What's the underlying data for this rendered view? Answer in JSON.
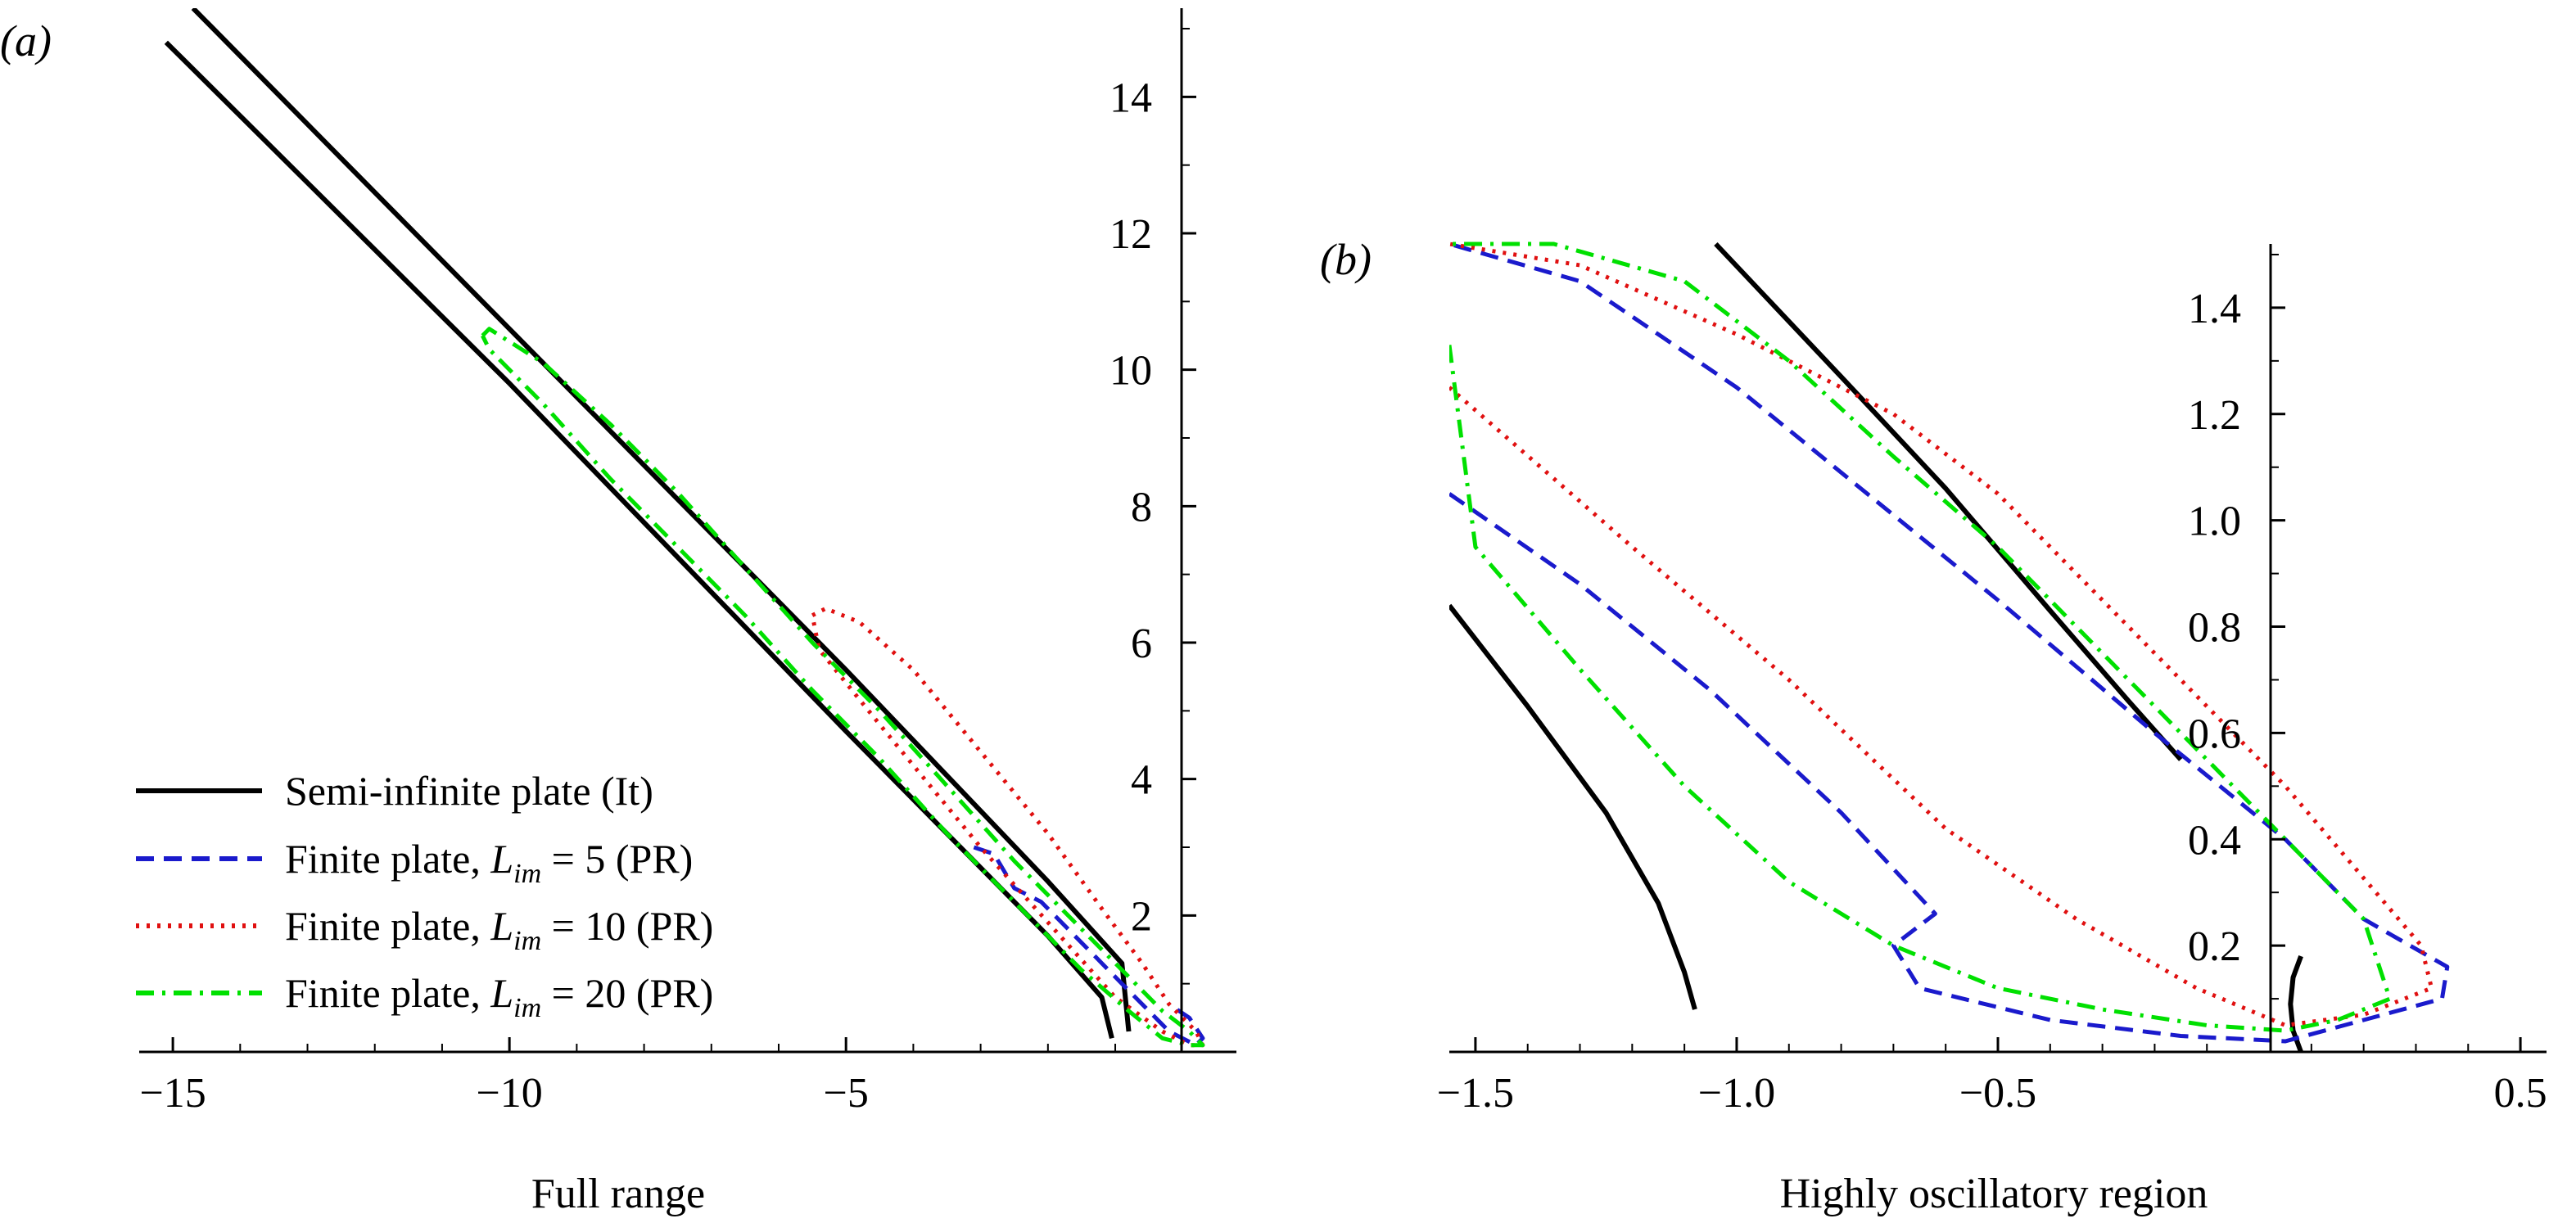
{
  "figure": {
    "panel_a_label": "(a)",
    "panel_b_label": "(b)"
  },
  "chart_data": [
    {
      "type": "line",
      "panel": "(a)",
      "xlabel": "Full range",
      "ylabel": "",
      "xlim": [
        -15.5,
        0.8
      ],
      "ylim": [
        0,
        15.3
      ],
      "xticks": [
        "−15",
        "−10",
        "−5"
      ],
      "yticks": [
        "2",
        "4",
        "6",
        "8",
        "10",
        "12",
        "14"
      ],
      "grid": false,
      "legend_position": "bottom-left",
      "legend": [
        {
          "label": "Semi-infinite plate (It)",
          "color": "#000000",
          "style": "solid"
        },
        {
          "label": "Finite plate, L_im = 5 (PR)",
          "color": "#1a1acc",
          "style": "dashed"
        },
        {
          "label": "Finite plate, L_im = 10 (PR)",
          "color": "#e01010",
          "style": "dotted"
        },
        {
          "label": "Finite plate, L_im = 20 (PR)",
          "color": "#00e000",
          "style": "dashdot"
        }
      ],
      "series": [
        {
          "name": "Semi-infinite plate (It)",
          "color": "#000000",
          "style": "solid",
          "x": [
            -15.1,
            -10,
            -5,
            -2,
            -1.2,
            -1.05
          ],
          "y": [
            14.8,
            9.8,
            4.7,
            1.7,
            0.8,
            0.2
          ]
        },
        {
          "color": "#000000",
          "style": "solid",
          "x": [
            -14.7,
            -10,
            -5,
            -2,
            -0.9,
            -0.8
          ],
          "y": [
            15.3,
            10.6,
            5.6,
            2.5,
            1.3,
            0.3
          ]
        },
        {
          "name": "Finite plate, L_im = 5 (PR)",
          "color": "#1a1acc",
          "style": "dashed",
          "x": [
            -3.1,
            -2.8,
            -2.5,
            -2.1,
            -1.7,
            -1.3,
            -0.9,
            -0.5,
            -0.2,
            0.2,
            0.3,
            0.1,
            -0.2
          ],
          "y": [
            3.0,
            2.9,
            2.4,
            2.2,
            1.8,
            1.4,
            1.0,
            0.6,
            0.3,
            0.1,
            0.2,
            0.5,
            0.7
          ]
        },
        {
          "name": "Finite plate, L_im = 10 (PR)",
          "color": "#e01010",
          "style": "dotted",
          "x": [
            -5.5,
            -5.3,
            -4.8,
            -4.0,
            -3.0,
            -2.0,
            -1.2,
            -0.6,
            -0.2,
            0.2,
            0.3,
            0.1,
            -0.3,
            -1.0,
            -2.0,
            -3.0,
            -4.5,
            -5.4,
            -5.5
          ],
          "y": [
            6.4,
            6.5,
            6.3,
            5.6,
            4.4,
            3.2,
            2.1,
            1.3,
            0.7,
            0.3,
            0.1,
            0.1,
            0.3,
            0.8,
            1.9,
            3.0,
            4.8,
            5.9,
            6.4
          ]
        },
        {
          "name": "Finite plate, L_im = 20 (PR)",
          "color": "#00e000",
          "style": "dashdot",
          "x": [
            -10.4,
            -10.3,
            -9.5,
            -8.5,
            -7.5,
            -6.5,
            -5.5,
            -4.5,
            -3.5,
            -2.5,
            -1.5,
            -0.8,
            -0.3,
            0.1,
            0.3,
            0.1,
            -0.3,
            -0.8,
            -1.5,
            -2.5,
            -3.5,
            -4.5,
            -5.5,
            -6.5,
            -7.5,
            -8.5,
            -9.5,
            -10.3,
            -10.4
          ],
          "y": [
            10.5,
            10.6,
            10.1,
            9.2,
            8.2,
            7.1,
            6.0,
            5.0,
            3.9,
            2.8,
            1.8,
            1.1,
            0.6,
            0.3,
            0.1,
            0.1,
            0.2,
            0.6,
            1.2,
            2.2,
            3.2,
            4.3,
            5.3,
            6.4,
            7.4,
            8.4,
            9.5,
            10.3,
            10.5
          ]
        }
      ]
    },
    {
      "type": "line",
      "panel": "(b)",
      "xlabel": "Highly oscillatory region",
      "ylabel": "",
      "xlim": [
        -1.55,
        0.55
      ],
      "ylim": [
        0,
        1.52
      ],
      "xticks": [
        "−1.5",
        "−1.0",
        "−0.5",
        "0.5"
      ],
      "yticks": [
        "0.2",
        "0.4",
        "0.6",
        "0.8",
        "1.0",
        "1.2",
        "1.4"
      ],
      "grid": false,
      "series": [
        {
          "name": "Semi-infinite plate (It)",
          "color": "#000000",
          "style": "solid",
          "x": [
            -1.55,
            -1.4,
            -1.25,
            -1.15,
            -1.1,
            -1.08
          ],
          "y": [
            0.84,
            0.65,
            0.45,
            0.28,
            0.15,
            0.08
          ]
        },
        {
          "color": "#000000",
          "style": "solid",
          "x": [
            -1.04,
            -0.8,
            -0.6,
            -0.4,
            -0.25,
            -0.15
          ],
          "y": [
            1.52,
            1.27,
            1.06,
            0.83,
            0.66,
            0.55
          ]
        },
        {
          "color": "#000000",
          "style": "solid",
          "x": [
            0.08,
            0.065,
            0.06,
            0.065,
            0.08
          ],
          "y": [
            0.0,
            0.04,
            0.09,
            0.14,
            0.18
          ]
        },
        {
          "name": "Finite plate, L_im = 5 (PR)",
          "color": "#1a1acc",
          "style": "dashed",
          "x": [
            -1.55,
            -1.3,
            -1.05,
            -0.8,
            -0.62,
            -0.7,
            -0.65,
            -0.4,
            -0.15,
            0.05,
            0.2,
            0.35,
            0.36,
            0.2,
            0.05,
            -0.2,
            -0.5,
            -0.75,
            -1.0,
            -1.3,
            -1.55
          ],
          "y": [
            1.05,
            0.88,
            0.68,
            0.45,
            0.26,
            0.2,
            0.12,
            0.06,
            0.03,
            0.02,
            0.06,
            0.1,
            0.16,
            0.25,
            0.4,
            0.6,
            0.85,
            1.05,
            1.25,
            1.45,
            1.52
          ]
        },
        {
          "name": "Finite plate, L_im = 10 (PR)",
          "color": "#e01010",
          "style": "dotted",
          "x": [
            -1.55,
            -1.2,
            -0.9,
            -0.6,
            -0.35,
            -0.12,
            0.05,
            0.2,
            0.33,
            0.31,
            0.18,
            0.05,
            -0.1,
            -0.3,
            -0.5,
            -0.7,
            -1.0,
            -1.3,
            -1.55
          ],
          "y": [
            1.25,
            0.95,
            0.7,
            0.42,
            0.25,
            0.12,
            0.05,
            0.07,
            0.12,
            0.2,
            0.35,
            0.5,
            0.65,
            0.85,
            1.05,
            1.2,
            1.35,
            1.48,
            1.52
          ]
        },
        {
          "name": "Finite plate, L_im = 20 (PR)",
          "color": "#00e000",
          "style": "dashdot",
          "x": [
            -1.55,
            -1.5,
            -1.3,
            -1.1,
            -0.9,
            -0.7,
            -0.5,
            -0.3,
            -0.1,
            0.05,
            0.15,
            0.25,
            0.2,
            0.05,
            -0.1,
            -0.3,
            -0.5,
            -0.7,
            -0.9,
            -1.1,
            -1.35,
            -1.55
          ],
          "y": [
            1.33,
            0.95,
            0.72,
            0.5,
            0.32,
            0.2,
            0.12,
            0.08,
            0.05,
            0.04,
            0.06,
            0.1,
            0.25,
            0.4,
            0.55,
            0.75,
            0.95,
            1.12,
            1.3,
            1.45,
            1.52,
            1.52
          ]
        }
      ]
    }
  ]
}
